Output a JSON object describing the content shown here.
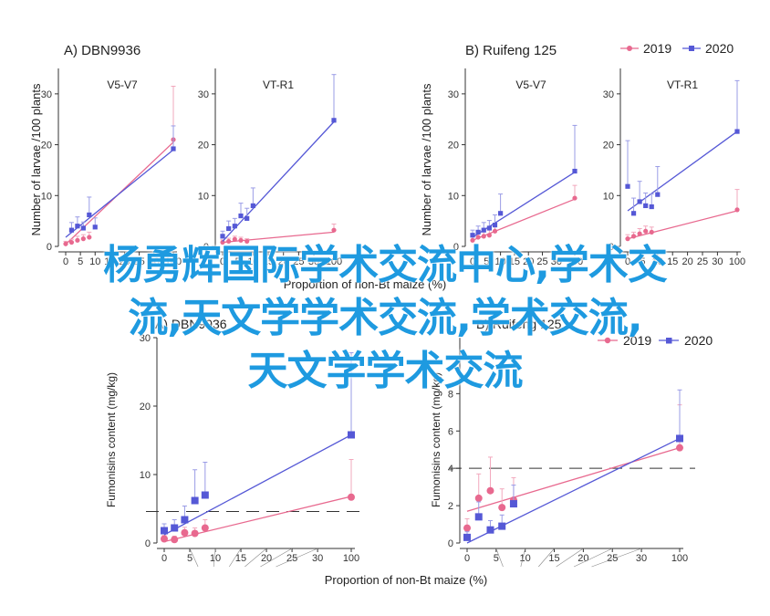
{
  "legend": {
    "items": [
      {
        "label": "2019",
        "color": "#e8698f",
        "marker": "circle"
      },
      {
        "label": "2020",
        "color": "#5558d6",
        "marker": "square"
      }
    ]
  },
  "shared_axis_labels": {
    "top_x": "Proportion of non-Bt maize (%)",
    "top_y": "Number of larvae /100 plants",
    "bottom_x": "Proportion of non-Bt maize (%)",
    "bottom_y": "Fumonisins content (mg/kg)"
  },
  "watermark": {
    "lines": [
      "杨勇辉国际学术交流中心,学术交",
      "流,天文学学术交流,学术交流,",
      "天文学学术交流"
    ]
  },
  "chart_data": [
    {
      "id": "top-a-v5v7",
      "type": "line",
      "panel_title": "A)  DBN9936",
      "subtitle": "V5-V7",
      "xlabel": "Proportion of non-Bt maize (%)",
      "ylabel": "Number of larvae /100 plants",
      "x_ticks": [
        0,
        5,
        10,
        15,
        20,
        25,
        30,
        100
      ],
      "x_scale": "broken-axis",
      "ylim": [
        0,
        35
      ],
      "y_ticks": [
        0,
        10,
        20,
        30
      ],
      "series": [
        {
          "name": "2019",
          "color": "#e8698f",
          "marker": "circle",
          "x": [
            0,
            2,
            4,
            6,
            8,
            100
          ],
          "y": [
            0.5,
            0.8,
            1.2,
            1.5,
            1.8,
            21
          ],
          "err": [
            0.5,
            0.6,
            0.8,
            0.8,
            1.0,
            10.5
          ],
          "fit": {
            "x": [
              0,
              100
            ],
            "y": [
              0.4,
              20.5
            ]
          }
        },
        {
          "name": "2020",
          "color": "#5558d6",
          "marker": "square",
          "x": [
            2,
            4,
            6,
            8,
            10,
            100
          ],
          "y": [
            3.2,
            4.0,
            3.6,
            6.2,
            3.8,
            19.2
          ],
          "err": [
            1.5,
            1.8,
            1.2,
            3.5,
            1.8,
            4.5
          ],
          "fit": {
            "x": [
              0,
              100
            ],
            "y": [
              1.8,
              19.0
            ]
          }
        }
      ]
    },
    {
      "id": "top-a-vtr1",
      "type": "line",
      "subtitle": "VT-R1",
      "x_ticks": [
        0,
        5,
        10,
        15,
        20,
        25,
        30,
        100
      ],
      "ylim": [
        0,
        35
      ],
      "y_ticks": [
        0,
        10,
        20,
        30
      ],
      "series": [
        {
          "name": "2019",
          "color": "#e8698f",
          "marker": "circle",
          "x": [
            0,
            2,
            4,
            6,
            8,
            100
          ],
          "y": [
            0.8,
            1.0,
            1.4,
            1.2,
            1.0,
            3.2
          ],
          "err": [
            0.5,
            0.6,
            0.6,
            0.6,
            0.5,
            1.2
          ],
          "fit": {
            "x": [
              0,
              100
            ],
            "y": [
              0.8,
              2.8
            ]
          }
        },
        {
          "name": "2020",
          "color": "#5558d6",
          "marker": "square",
          "x": [
            0,
            2,
            4,
            6,
            8,
            10,
            100
          ],
          "y": [
            2.0,
            3.5,
            4.0,
            6.0,
            5.5,
            8.0,
            24.8
          ],
          "err": [
            1.0,
            1.5,
            1.5,
            2.5,
            2.0,
            3.5,
            9.0
          ],
          "fit": {
            "x": [
              0,
              100
            ],
            "y": [
              1.0,
              24.5
            ]
          }
        }
      ]
    },
    {
      "id": "top-b-v5v7",
      "type": "line",
      "panel_title": "B)  Ruifeng 125",
      "subtitle": "V5-V7",
      "x_ticks": [
        0,
        5,
        10,
        15,
        20,
        25,
        30,
        100
      ],
      "ylim": [
        0,
        35
      ],
      "y_ticks": [
        0,
        10,
        20,
        30
      ],
      "series": [
        {
          "name": "2019",
          "color": "#e8698f",
          "marker": "circle",
          "x": [
            0,
            2,
            4,
            6,
            8,
            100
          ],
          "y": [
            1.2,
            1.8,
            2.0,
            2.2,
            3.0,
            9.5
          ],
          "err": [
            0.8,
            0.8,
            1.0,
            1.0,
            1.2,
            2.5
          ],
          "fit": {
            "x": [
              0,
              100
            ],
            "y": [
              1.2,
              9.3
            ]
          }
        },
        {
          "name": "2020",
          "color": "#5558d6",
          "marker": "square",
          "x": [
            0,
            2,
            4,
            6,
            8,
            10,
            100
          ],
          "y": [
            2.2,
            2.8,
            3.2,
            3.6,
            4.2,
            6.5,
            14.8
          ],
          "err": [
            1.0,
            1.2,
            1.5,
            1.5,
            2.0,
            3.8,
            9.0
          ],
          "fit": {
            "x": [
              0,
              100
            ],
            "y": [
              1.8,
              14.6
            ]
          }
        }
      ]
    },
    {
      "id": "top-b-vtr1",
      "type": "line",
      "subtitle": "VT-R1",
      "x_ticks": [
        0,
        5,
        10,
        15,
        20,
        25,
        30,
        100
      ],
      "ylim": [
        0,
        35
      ],
      "y_ticks": [
        0,
        10,
        20,
        30
      ],
      "series": [
        {
          "name": "2019",
          "color": "#e8698f",
          "marker": "circle",
          "x": [
            0,
            2,
            4,
            6,
            8,
            100
          ],
          "y": [
            1.5,
            2.0,
            2.5,
            3.0,
            2.8,
            7.2
          ],
          "err": [
            0.8,
            0.8,
            1.0,
            1.0,
            1.0,
            4.0
          ],
          "fit": {
            "x": [
              0,
              100
            ],
            "y": [
              1.5,
              7.0
            ]
          }
        },
        {
          "name": "2020",
          "color": "#5558d6",
          "marker": "square",
          "x": [
            0,
            2,
            4,
            6,
            8,
            10,
            100
          ],
          "y": [
            11.8,
            6.5,
            8.8,
            8.0,
            7.8,
            10.2,
            22.6
          ],
          "err": [
            9.0,
            3.0,
            4.0,
            2.5,
            2.5,
            5.5,
            10.0
          ],
          "fit": {
            "x": [
              0,
              100
            ],
            "y": [
              7.0,
              22.6
            ]
          }
        }
      ]
    },
    {
      "id": "bottom-a",
      "type": "line",
      "panel_title": "A) DBN9936",
      "xlabel": "Proportion of non-Bt maize (%)",
      "ylabel": "Fumonisins content (mg/kg)",
      "x_ticks": [
        0,
        5,
        10,
        15,
        20,
        25,
        30,
        100
      ],
      "ylim": [
        0,
        30
      ],
      "y_ticks": [
        0,
        10,
        20,
        30
      ],
      "threshold": 4.6,
      "series": [
        {
          "name": "2019",
          "color": "#e8698f",
          "marker": "circle",
          "x": [
            0,
            2,
            4,
            6,
            8,
            100
          ],
          "y": [
            0.6,
            0.5,
            1.5,
            1.4,
            2.2,
            6.7
          ],
          "err": [
            0.5,
            0.5,
            0.8,
            0.8,
            1.2,
            5.5
          ],
          "fit": {
            "x": [
              0,
              100
            ],
            "y": [
              0.2,
              6.8
            ]
          }
        },
        {
          "name": "2020",
          "color": "#5558d6",
          "marker": "square",
          "x": [
            0,
            2,
            4,
            6,
            8,
            100
          ],
          "y": [
            1.8,
            2.2,
            3.4,
            6.2,
            7.0,
            15.8
          ],
          "err": [
            1.0,
            1.2,
            2.0,
            4.5,
            4.8,
            12.0
          ],
          "fit": {
            "x": [
              0,
              100
            ],
            "y": [
              1.2,
              15.8
            ]
          }
        }
      ]
    },
    {
      "id": "bottom-b",
      "type": "line",
      "panel_title": "B) Ruifeng 125",
      "xlabel": "Proportion of non-Bt maize (%)",
      "ylabel": "Fumonisins content (mg/kg)",
      "x_ticks": [
        0,
        5,
        10,
        15,
        20,
        25,
        30,
        100
      ],
      "ylim": [
        0,
        11
      ],
      "y_ticks": [
        0,
        2,
        4,
        6,
        8
      ],
      "threshold": 4.0,
      "series": [
        {
          "name": "2019",
          "color": "#e8698f",
          "marker": "circle",
          "x": [
            0,
            2,
            4,
            6,
            8,
            100
          ],
          "y": [
            0.8,
            2.4,
            2.8,
            1.9,
            2.3,
            5.1
          ],
          "err": [
            0.5,
            1.3,
            1.8,
            1.0,
            1.2,
            2.3
          ],
          "fit": {
            "x": [
              0,
              100
            ],
            "y": [
              1.7,
              5.1
            ]
          }
        },
        {
          "name": "2020",
          "color": "#5558d6",
          "marker": "square",
          "x": [
            0,
            2,
            4,
            6,
            8,
            100
          ],
          "y": [
            0.3,
            1.4,
            0.7,
            0.9,
            2.1,
            5.6
          ],
          "err": [
            0.3,
            0.8,
            0.5,
            0.6,
            1.0,
            2.6
          ],
          "fit": {
            "x": [
              0,
              100
            ],
            "y": [
              0.0,
              5.6
            ]
          }
        }
      ]
    }
  ]
}
